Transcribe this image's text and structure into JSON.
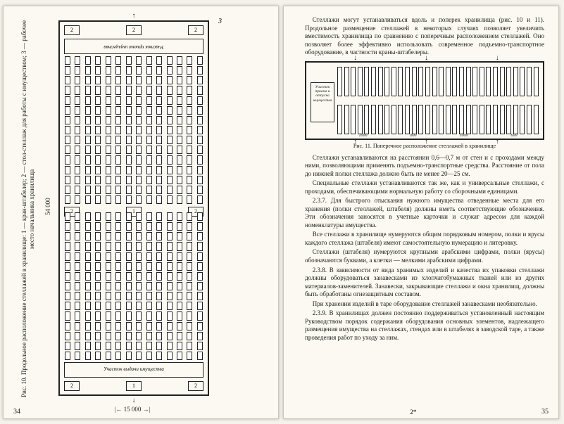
{
  "left": {
    "fig10": {
      "caption": "Рис. 10. Продольное расположение стеллажей в хранилище:  1 — кран-штабелер;  2 — стол-стеллаж для работы с имуществом;  3 — рабочее место начальника хранилища",
      "length_dim": "54 000",
      "width_dim": "15 000",
      "end_zone_top": "Участок приема имущества",
      "end_zone_bottom": "Участок выдачи имущества",
      "cols_per_half": 14,
      "cells_per_col": 15,
      "mid_labels": [
        "2",
        "1",
        "2"
      ],
      "top_labels": [
        "2",
        "2",
        "2"
      ],
      "bot_labels": [
        "2",
        "1",
        "2"
      ],
      "side_num": "3"
    },
    "page_number": "34"
  },
  "right": {
    "para1": "Стеллажи могут устанавливаться вдоль и поперек хранилища (рис. 10 и 11). Продольное размещение стеллажей в некоторых случаях позволяет увеличить вместимость хранилища по сравнению с поперечным расположением стеллажей. Оно позволяет более эффективно использовать современное подъемно-транспортное оборудование, в частности краны-штабелеры.",
    "fig11": {
      "note_box": "Участок приема и отпуска имущества",
      "cols_per_row": 30,
      "dims": [
        "1000",
        "800",
        "1000",
        "600"
      ],
      "caption": "Рис. 11. Поперечное расположение стеллажей в хранилище"
    },
    "para2": "Стеллажи устанавливаются на расстоянии 0,6—0,7 м от стен и с проходами между ними, позволяющими применять подъемно-транспортные средства. Расстояние от пола до нижней полки стеллажа должно быть не менее 20—25 см.",
    "para3": "Специальные стеллажи устанавливаются так же, как и универсальные стеллажи, с проходами, обеспечивающими нормальную работу со сборочными единицами.",
    "para4": "2.3.7. Для быстрого отыскания нужного имущества отведенные места для его хранения (полки стеллажей, штабеля) должны иметь соответствующие обозначения. Эти обозначения заносятся в учетные карточки и служат адресом для каждой номенклатуры имущества.",
    "para5": "Все стеллажи в хранилище нумеруются общим порядковым номером, полки и ярусы каждого стеллажа (штабеля) имеют самостоятельную нумерацию и литеровку.",
    "para6": "Стеллажи (штабеля) нумеруются крупными арабскими цифрами, полки (ярусы) обозначаются буквами, а клетки — мелкими арабскими цифрами.",
    "para7": "2.3.8. В зависимости от вида хранимых изделий и качества их упаковки стеллажи должны оборудоваться занавесками из хлопчатобумажных тканей или из других материалов-заменителей. Занавески, закрывающие стеллажи и окна хранилищ, должны быть обработаны огнезащитным составом.",
    "para8": "При хранении изделий в таре оборудование стеллажей занавесками необязательно.",
    "para9": "2.3.9. В хранилищах должен постоянно поддерживаться установленный настоящим Руководством порядок содержания оборудования основных элементов, надлежащего размещения имущества на стеллажах, стендах или в штабелях в заводской таре, а также проведения работ по уходу за ним.",
    "page_number": "35",
    "signature": "2*"
  }
}
